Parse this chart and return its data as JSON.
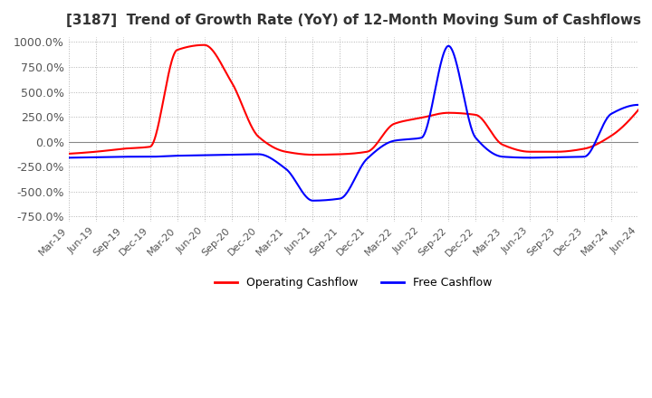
{
  "title": "[3187]  Trend of Growth Rate (YoY) of 12-Month Moving Sum of Cashflows",
  "ylim": [
    -800,
    1050
  ],
  "yticks": [
    -750,
    -500,
    -250,
    0,
    250,
    500,
    750,
    1000
  ],
  "ytick_labels": [
    "-750.0%",
    "-500.0%",
    "-250.0%",
    "0.0%",
    "250.0%",
    "500.0%",
    "750.0%",
    "1000.0%"
  ],
  "background_color": "#ffffff",
  "grid_color": "#aaaaaa",
  "operating_color": "#ff0000",
  "free_color": "#0000ff",
  "legend_labels": [
    "Operating Cashflow",
    "Free Cashflow"
  ],
  "x_labels": [
    "Mar-19",
    "Jun-19",
    "Sep-19",
    "Dec-19",
    "Mar-20",
    "Jun-20",
    "Sep-20",
    "Dec-20",
    "Mar-21",
    "Jun-21",
    "Sep-21",
    "Dec-21",
    "Mar-22",
    "Jun-22",
    "Sep-22",
    "Dec-22",
    "Mar-23",
    "Jun-23",
    "Sep-23",
    "Dec-23",
    "Mar-24",
    "Jun-24"
  ],
  "operating_y": [
    -120,
    -100,
    -70,
    -50,
    920,
    970,
    600,
    50,
    -100,
    -130,
    -125,
    -100,
    180,
    240,
    290,
    270,
    -30,
    -100,
    -100,
    -70,
    60,
    320
  ],
  "free_y": [
    -160,
    -155,
    -150,
    -150,
    -140,
    -135,
    -130,
    -125,
    -270,
    -590,
    -570,
    -170,
    10,
    40,
    960,
    40,
    -150,
    -160,
    -155,
    -150,
    280,
    370
  ]
}
